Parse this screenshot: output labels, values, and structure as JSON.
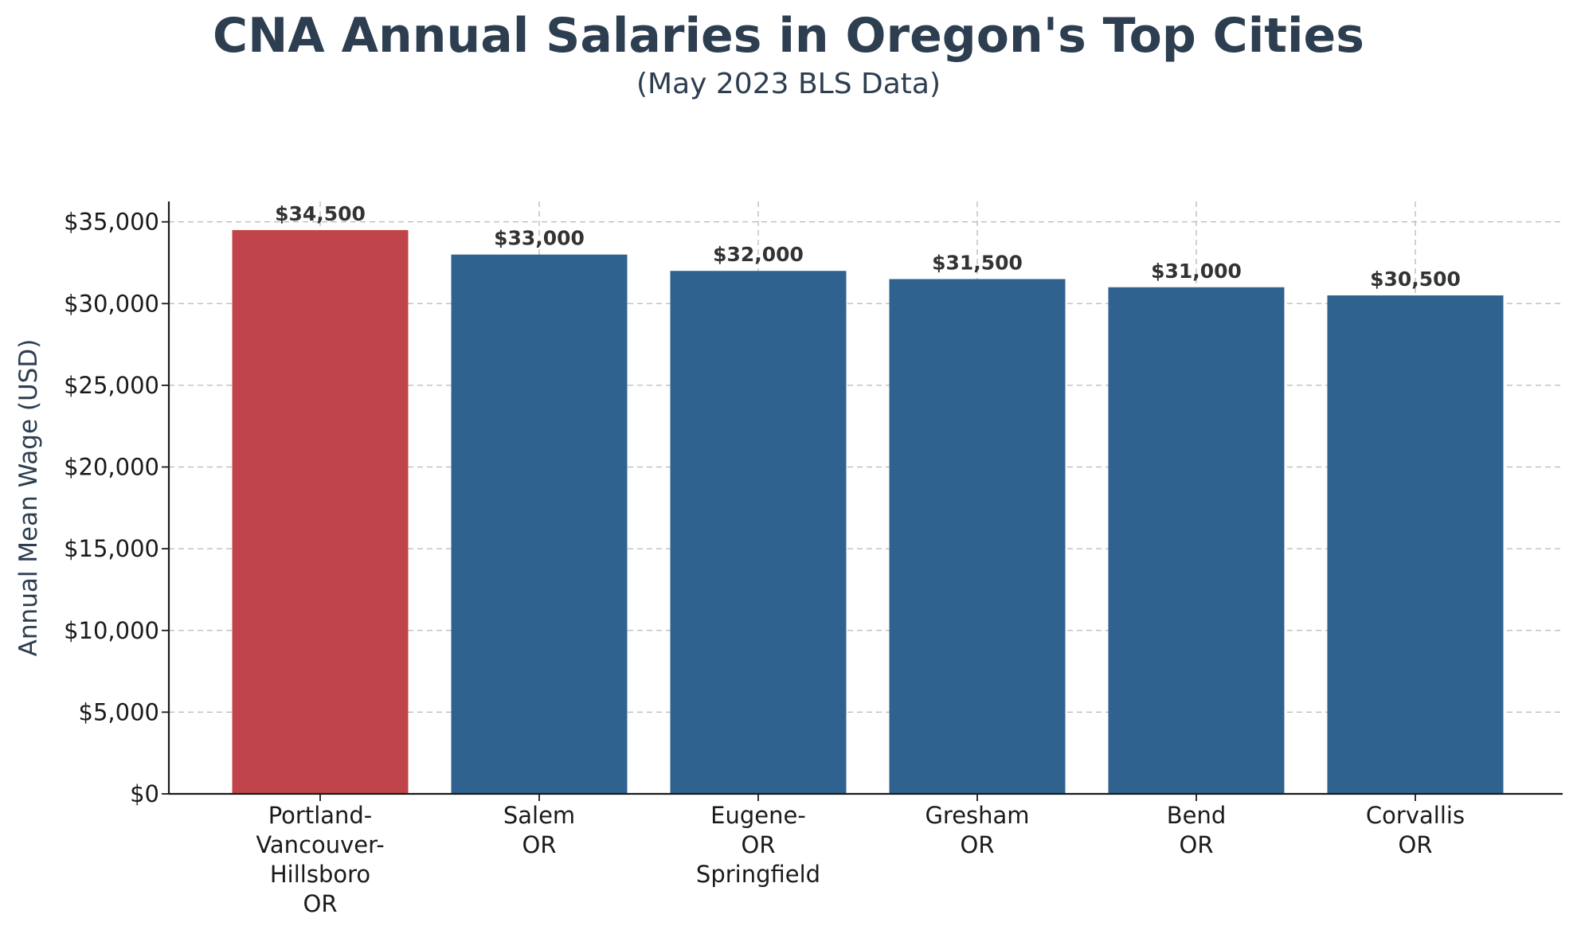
{
  "colors": {
    "highlight": "#c0454a",
    "bar": "#30628f",
    "title": "#2c3e50"
  },
  "chart_data": {
    "type": "bar",
    "title": "CNA Annual Salaries in Oregon's Top Cities",
    "subtitle": "(May 2023 BLS Data)",
    "ylabel": "Annual Mean Wage (USD)",
    "xlabel": "",
    "ylim": [
      0,
      36250
    ],
    "grid": true,
    "categories": [
      [
        "Portland-",
        "Vancouver-",
        "Hillsboro",
        "OR"
      ],
      [
        "Salem",
        "OR"
      ],
      [
        "Eugene-",
        "OR",
        "Springfield"
      ],
      [
        "Gresham",
        "OR"
      ],
      [
        "Bend",
        "OR"
      ],
      [
        "Corvallis",
        "OR"
      ]
    ],
    "values": [
      34500,
      33000,
      32000,
      31500,
      31000,
      30500
    ],
    "data_labels": [
      "$34,500",
      "$33,000",
      "$32,000",
      "$31,500",
      "$31,000",
      "$30,500"
    ],
    "highlight_index": 0,
    "yticks": [
      0,
      5000,
      10000,
      15000,
      20000,
      25000,
      30000,
      35000
    ],
    "ytick_labels": [
      "$0",
      "$5,000",
      "$10,000",
      "$15,000",
      "$20,000",
      "$25,000",
      "$30,000",
      "$35,000"
    ]
  }
}
